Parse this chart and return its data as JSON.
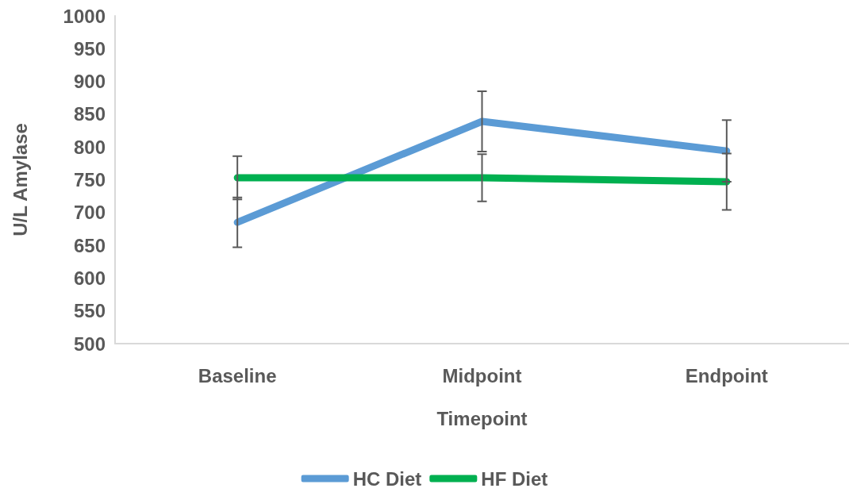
{
  "chart_data": {
    "type": "line",
    "xlabel": "Timepoint",
    "ylabel": "U/L Amylase",
    "categories": [
      "Baseline",
      "Midpoint",
      "Endpoint"
    ],
    "series": [
      {
        "name": "HC Diet",
        "color": "#5b9bd5",
        "values": [
          685,
          839,
          794
        ],
        "errors": [
          38,
          46,
          47
        ]
      },
      {
        "name": "HF Diet",
        "color": "#00b050",
        "values": [
          753,
          753,
          747
        ],
        "errors": [
          33,
          36,
          43
        ]
      }
    ],
    "ylim": [
      500,
      1000
    ],
    "yticks": [
      500,
      550,
      600,
      650,
      700,
      750,
      800,
      850,
      900,
      950,
      1000
    ],
    "grid": false,
    "legend": "bottom",
    "marker": "none",
    "line_style": "solid"
  }
}
